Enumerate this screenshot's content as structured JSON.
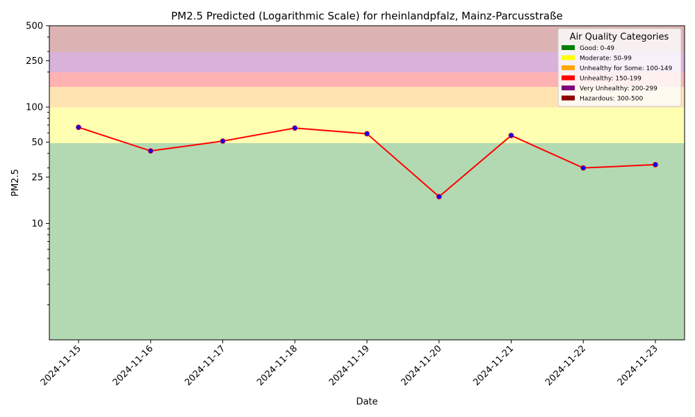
{
  "chart_data": {
    "type": "line",
    "title": "PM2.5 Predicted (Logarithmic Scale) for rheinlandpfalz, Mainz-Parcusstraße",
    "xlabel": "Date",
    "ylabel": "PM2.5",
    "y_scale": "log",
    "ylim": [
      1,
      500
    ],
    "yticks": [
      10,
      25,
      50,
      100,
      250,
      500
    ],
    "x": [
      "2024-11-15",
      "2024-11-16",
      "2024-11-17",
      "2024-11-18",
      "2024-11-19",
      "2024-11-20",
      "2024-11-21",
      "2024-11-22",
      "2024-11-23"
    ],
    "series": [
      {
        "values": [
          67,
          42,
          51,
          66,
          59,
          17,
          57,
          30,
          32
        ],
        "line_color": "#ff0000",
        "marker_color": "#0000ff"
      }
    ],
    "bands": [
      {
        "label": "Good: 0-49",
        "from": 0,
        "to": 49,
        "color": "#008000"
      },
      {
        "label": "Moderate: 50-99",
        "from": 49,
        "to": 99,
        "color": "#ffff00"
      },
      {
        "label": "Unhealthy for Some: 100-149",
        "from": 99,
        "to": 149,
        "color": "#ffa500"
      },
      {
        "label": "Unhealthy: 150-199",
        "from": 149,
        "to": 199,
        "color": "#ff0000"
      },
      {
        "label": "Very Unhealthy: 200-299",
        "from": 199,
        "to": 299,
        "color": "#800080"
      },
      {
        "label": "Hazardous: 300-500",
        "from": 299,
        "to": 500,
        "color": "#8b0000"
      }
    ],
    "legend": {
      "title": "Air Quality Categories",
      "placement": "top-right"
    },
    "grid": false
  }
}
